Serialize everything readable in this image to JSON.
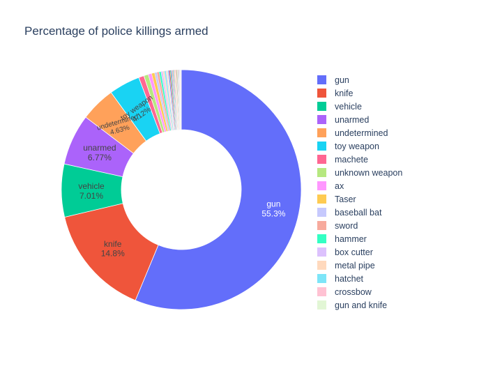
{
  "chart_data": {
    "type": "pie",
    "title": "Percentage of police killings armed",
    "hole": 0.5,
    "categories": [
      "gun",
      "knife",
      "vehicle",
      "unarmed",
      "undetermined",
      "toy weapon",
      "machete",
      "unknown weapon",
      "ax",
      "Taser",
      "baseball bat",
      "sword",
      "hammer",
      "box cutter",
      "metal pipe",
      "hatchet",
      "crossbow",
      "gun and knife"
    ],
    "values": [
      55.3,
      14.8,
      7.01,
      6.77,
      4.63,
      4.12,
      0.7,
      0.6,
      0.45,
      0.4,
      0.3,
      0.3,
      0.25,
      0.25,
      0.2,
      0.2,
      0.15,
      0.15
    ],
    "other_values": [
      0.14,
      0.13,
      0.12,
      0.11,
      0.1,
      0.1,
      0.09,
      0.09,
      0.08,
      0.08,
      0.07,
      0.07,
      0.06,
      0.06,
      0.05,
      0.05,
      0.05,
      0.04,
      0.04,
      0.04,
      0.03,
      0.03,
      0.03,
      0.02,
      0.02,
      0.02
    ],
    "labels_shown": [
      {
        "name": "gun",
        "pct": "55.3%"
      },
      {
        "name": "knife",
        "pct": "14.8%"
      },
      {
        "name": "vehicle",
        "pct": "7.01%"
      },
      {
        "name": "unarmed",
        "pct": "6.77%"
      },
      {
        "name": "undetermined",
        "pct": "4.63%"
      },
      {
        "name": "toy weapon",
        "pct": "4.12%"
      }
    ],
    "colors": [
      "#636efa",
      "#EF553B",
      "#00cc96",
      "#ab63fa",
      "#FFA15A",
      "#19d3f3",
      "#FF6692",
      "#B6E880",
      "#FF97FF",
      "#FECB52",
      "#c6c9fd",
      "#f7aa9d",
      "#33ffc3",
      "#dcc1fd",
      "#ffd9bd",
      "#7de5f8",
      "#ffc2d3",
      "#e2f6d5"
    ],
    "legend_position": "right",
    "direction": "clockwise",
    "start_angle": "top"
  }
}
